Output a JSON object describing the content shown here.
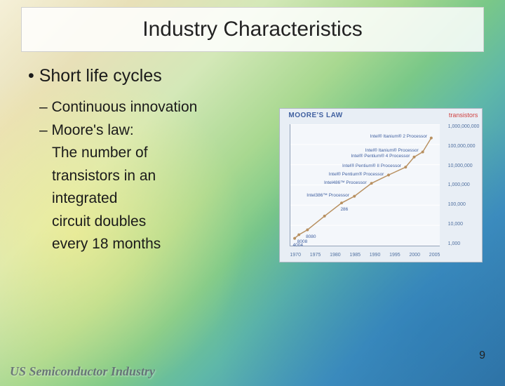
{
  "title": "Industry Characteristics",
  "main_bullet": "Short life cycles",
  "sub_bullets": [
    "Continuous innovation",
    "Moore's law:"
  ],
  "continuation_lines": [
    "The number of",
    "transistors in an",
    "integrated",
    "circuit doubles",
    "every 18 months"
  ],
  "chart": {
    "type": "line",
    "title_text": "MOORE'S LAW",
    "y_axis_label": "transistors",
    "xlim": [
      1970,
      2005
    ],
    "ylim_log10": [
      3,
      9
    ],
    "x_ticks": [
      "1970",
      "1975",
      "1980",
      "1985",
      "1990",
      "1995",
      "2000",
      "2005"
    ],
    "y_ticks": [
      "1,000,000,000",
      "100,000,000",
      "10,000,000",
      "1,000,000",
      "100,000",
      "10,000",
      "1,000"
    ],
    "points": [
      {
        "x": 1971,
        "y_log10": 3.36,
        "label": "4004"
      },
      {
        "x": 1972,
        "y_log10": 3.54,
        "label": "8008"
      },
      {
        "x": 1974,
        "y_log10": 3.78,
        "label": "8080"
      },
      {
        "x": 1978,
        "y_log10": 4.46,
        "label": null
      },
      {
        "x": 1982,
        "y_log10": 5.11,
        "label": "286"
      },
      {
        "x": 1985,
        "y_log10": 5.44,
        "label": "Intel386™ Processor"
      },
      {
        "x": 1989,
        "y_log10": 6.08,
        "label": "Intel486™ Processor"
      },
      {
        "x": 1993,
        "y_log10": 6.49,
        "label": "Intel® Pentium® Processor"
      },
      {
        "x": 1997,
        "y_log10": 6.88,
        "label": "Intel® Pentium® II Processor"
      },
      {
        "x": 1999,
        "y_log10": 7.38,
        "label": "Intel® Pentium® 4 Processor"
      },
      {
        "x": 2001,
        "y_log10": 7.63,
        "label": "Intel® Itanium® Processor"
      },
      {
        "x": 2003,
        "y_log10": 8.32,
        "label": "Intel® Itanium® 2 Processor"
      }
    ],
    "line_color": "#b89060",
    "marker_color": "#b89060",
    "marker_size": 4,
    "line_width": 1.5,
    "background_color": "#f4f7fb",
    "grid_color": "#ffffff",
    "annotation_color": "#4060a0"
  },
  "footer_logo": "US Semiconductor Industry",
  "page_number": "9",
  "colors": {
    "title_box_bg": "#ffffff",
    "text": "#1a1a1a"
  }
}
